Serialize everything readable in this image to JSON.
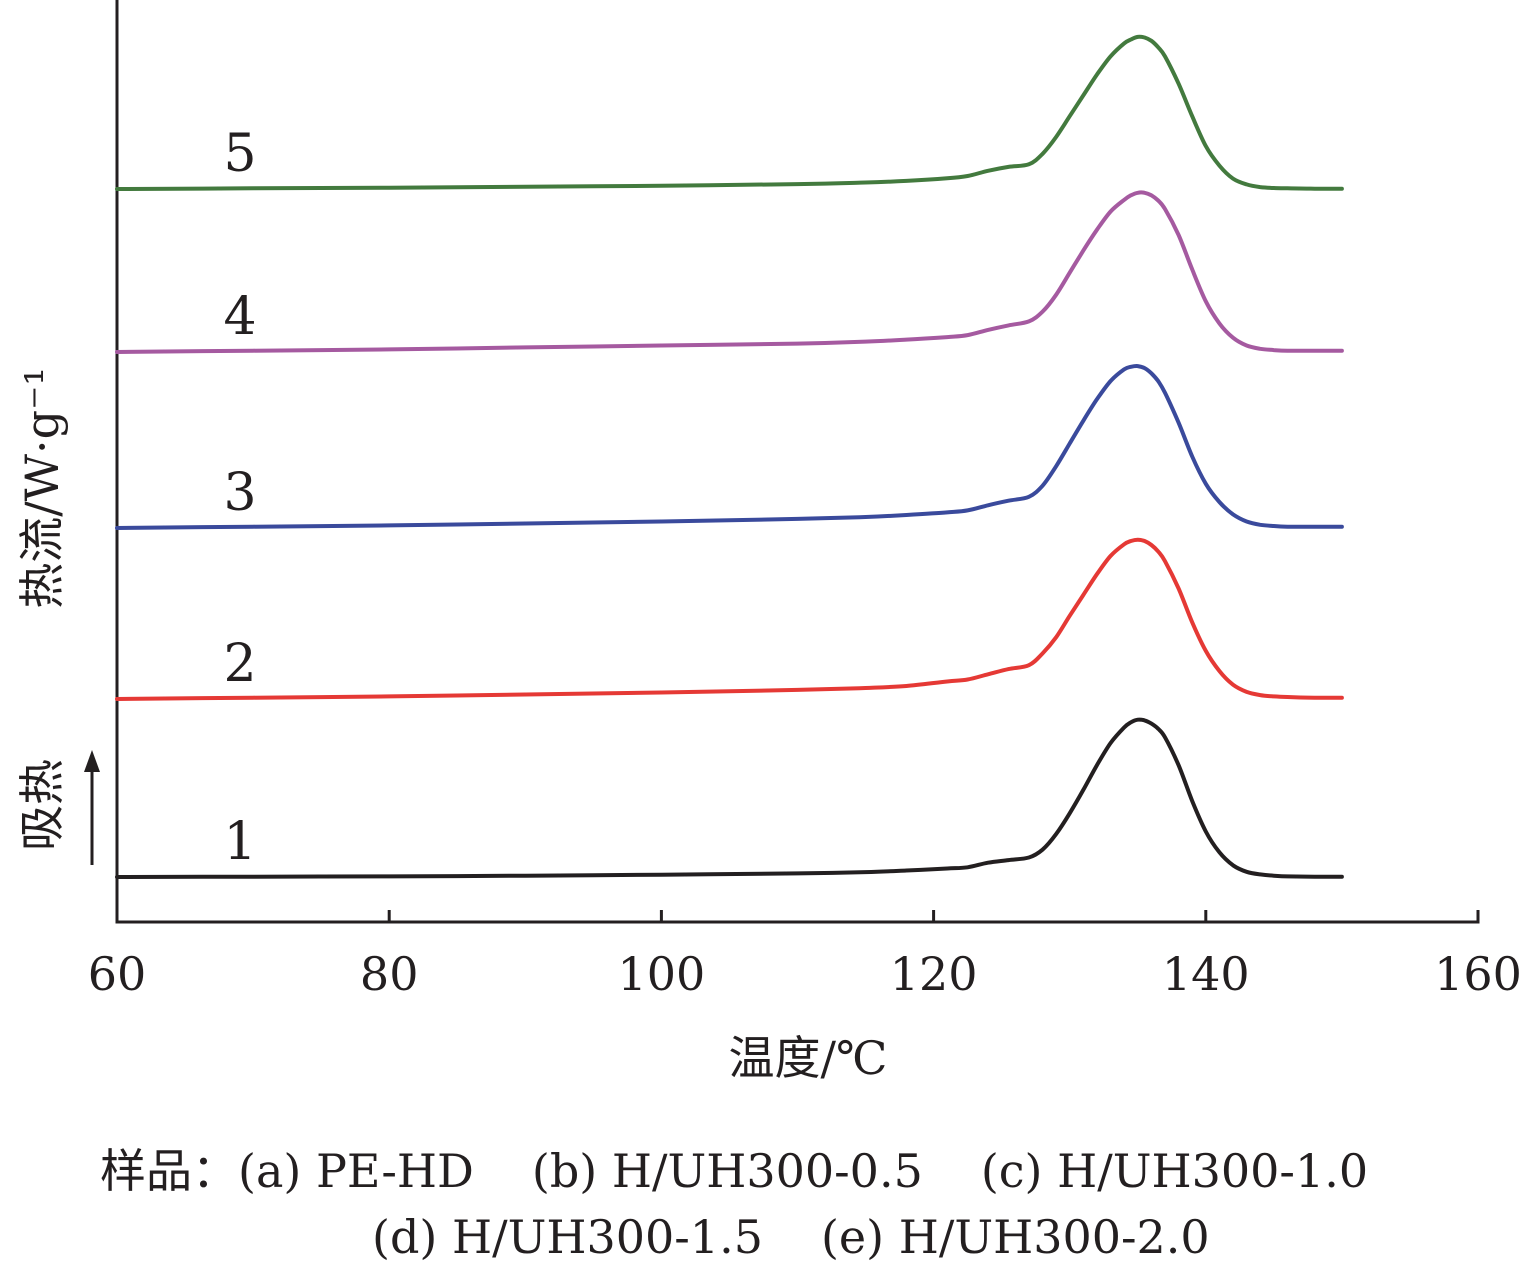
{
  "chart_data": {
    "type": "line",
    "title": "",
    "xlabel": "温度/℃",
    "ylabel": "热流/W·g⁻¹",
    "endotherm_label": "吸热",
    "xlim": [
      60,
      160
    ],
    "xticks": [
      60,
      80,
      100,
      120,
      140,
      160
    ],
    "grid": false,
    "series": [
      {
        "name": "1",
        "color": "#231f20",
        "x": [
          60,
          70,
          80,
          90,
          100,
          110,
          115,
          118,
          121,
          122.5,
          124,
          125.5,
          127,
          128,
          129,
          130,
          131,
          132,
          133,
          134,
          134.5,
          135,
          135.5,
          136,
          136.5,
          137,
          138,
          139,
          140,
          141,
          142,
          143,
          144,
          145,
          146,
          148,
          150
        ],
        "y": [
          0,
          0.005,
          0.01,
          0.02,
          0.035,
          0.055,
          0.075,
          0.1,
          0.13,
          0.15,
          0.22,
          0.26,
          0.3,
          0.42,
          0.66,
          0.98,
          1.34,
          1.72,
          2.06,
          2.3,
          2.38,
          2.42,
          2.41,
          2.36,
          2.28,
          2.15,
          1.72,
          1.17,
          0.7,
          0.38,
          0.18,
          0.08,
          0.04,
          0.02,
          0.01,
          0.005,
          0.005
        ]
      },
      {
        "name": "2",
        "color": "#e53935",
        "x": [
          60,
          70,
          80,
          90,
          100,
          110,
          115,
          118,
          121,
          122.5,
          124,
          125.5,
          127,
          128,
          129,
          130,
          131,
          132,
          133,
          134,
          134.5,
          135,
          135.5,
          136,
          136.5,
          137,
          138,
          139,
          140,
          141,
          142,
          143,
          144,
          145,
          146,
          148,
          150
        ],
        "y": [
          0,
          0.02,
          0.04,
          0.07,
          0.1,
          0.14,
          0.17,
          0.2,
          0.27,
          0.3,
          0.38,
          0.46,
          0.52,
          0.7,
          0.95,
          1.28,
          1.6,
          1.92,
          2.2,
          2.38,
          2.43,
          2.45,
          2.43,
          2.37,
          2.27,
          2.12,
          1.7,
          1.18,
          0.74,
          0.43,
          0.22,
          0.11,
          0.06,
          0.04,
          0.03,
          0.02,
          0.02
        ]
      },
      {
        "name": "3",
        "color": "#3a4a9c",
        "x": [
          60,
          70,
          80,
          90,
          100,
          110,
          115,
          118,
          121,
          122.5,
          124,
          125.5,
          127,
          128,
          129,
          130,
          131,
          132,
          133,
          134,
          134.5,
          135,
          135.5,
          136,
          136.5,
          137,
          138,
          139,
          140,
          141,
          142,
          143,
          144,
          145,
          146,
          148,
          150
        ],
        "y": [
          0,
          0.02,
          0.04,
          0.07,
          0.1,
          0.14,
          0.17,
          0.2,
          0.24,
          0.27,
          0.35,
          0.42,
          0.48,
          0.65,
          0.95,
          1.3,
          1.65,
          1.98,
          2.26,
          2.44,
          2.48,
          2.49,
          2.46,
          2.38,
          2.26,
          2.08,
          1.62,
          1.1,
          0.68,
          0.4,
          0.21,
          0.1,
          0.05,
          0.03,
          0.02,
          0.02,
          0.02
        ]
      },
      {
        "name": "4",
        "color": "#a55aa0",
        "x": [
          60,
          70,
          80,
          90,
          100,
          110,
          115,
          118,
          121,
          122.5,
          124,
          125.5,
          127,
          128,
          129,
          130,
          131,
          132,
          133,
          134,
          134.5,
          135,
          135.5,
          136,
          136.5,
          137,
          138,
          139,
          140,
          141,
          142,
          143,
          144,
          145,
          146,
          148,
          150
        ],
        "y": [
          0,
          0.02,
          0.04,
          0.07,
          0.1,
          0.13,
          0.16,
          0.19,
          0.23,
          0.26,
          0.34,
          0.41,
          0.47,
          0.62,
          0.88,
          1.22,
          1.56,
          1.88,
          2.16,
          2.34,
          2.41,
          2.45,
          2.45,
          2.41,
          2.33,
          2.2,
          1.8,
          1.27,
          0.78,
          0.44,
          0.22,
          0.1,
          0.05,
          0.03,
          0.02,
          0.02,
          0.02
        ]
      },
      {
        "name": "5",
        "color": "#437a3e",
        "x": [
          60,
          70,
          80,
          90,
          100,
          110,
          115,
          118,
          121,
          122.5,
          124,
          125.5,
          127,
          128,
          129,
          130,
          131,
          132,
          133,
          134,
          134.5,
          135,
          135.5,
          136,
          136.5,
          137,
          138,
          139,
          140,
          141,
          142,
          143,
          144,
          145,
          146,
          148,
          150
        ],
        "y": [
          0,
          0.01,
          0.02,
          0.035,
          0.05,
          0.075,
          0.1,
          0.125,
          0.165,
          0.2,
          0.28,
          0.34,
          0.38,
          0.54,
          0.8,
          1.12,
          1.44,
          1.76,
          2.04,
          2.24,
          2.3,
          2.34,
          2.33,
          2.28,
          2.18,
          2.04,
          1.62,
          1.12,
          0.66,
          0.36,
          0.16,
          0.07,
          0.03,
          0.015,
          0.01,
          0.005,
          0.005
        ]
      }
    ]
  },
  "caption": {
    "line1": [
      "样品：(a) PE-HD",
      "(b) H/UH300-0.5",
      "(c) H/UH300-1.0"
    ],
    "line2": [
      "(d) H/UH300-1.5",
      "(e) H/UH300-2.0"
    ]
  }
}
